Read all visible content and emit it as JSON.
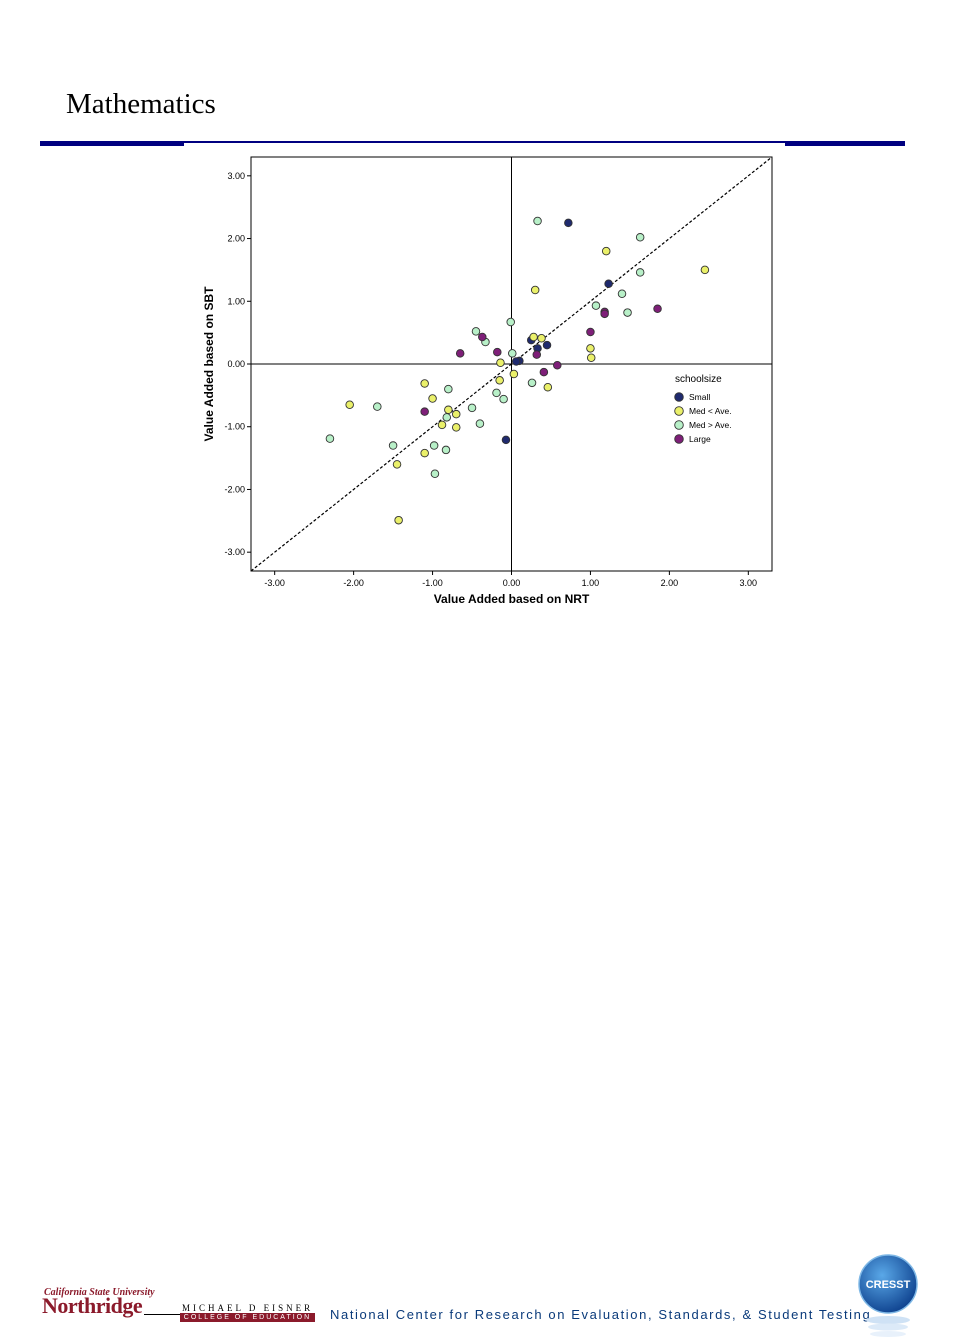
{
  "slide": {
    "title": "Mathematics"
  },
  "chart_data": {
    "type": "scatter",
    "xlabel": "Value Added based on NRT",
    "ylabel": "Value Added based on SBT",
    "xlim": [
      -3.3,
      3.3
    ],
    "ylim": [
      -3.3,
      3.3
    ],
    "xticks": [
      "-3.00",
      "-2.00",
      "-1.00",
      "0.00",
      "1.00",
      "2.00",
      "3.00"
    ],
    "yticks": [
      "3.00",
      "2.00",
      "1.00",
      "0.00",
      "-1.00",
      "-2.00",
      "-3.00"
    ],
    "reference_lines": [
      "x=0",
      "y=0",
      "y=x dashed"
    ],
    "legend": {
      "title": "schoolsize",
      "placement": "right"
    },
    "series": [
      {
        "name": "Small",
        "color": "#1f2a6e",
        "points": [
          [
            0.72,
            2.25
          ],
          [
            1.23,
            1.28
          ],
          [
            0.45,
            0.3
          ],
          [
            0.33,
            0.25
          ],
          [
            0.25,
            0.38
          ],
          [
            0.1,
            0.05
          ],
          [
            0.06,
            0.04
          ],
          [
            -0.07,
            -1.21
          ]
        ]
      },
      {
        "name": "Med < Ave.",
        "color": "#eaf06a",
        "points": [
          [
            1.2,
            1.8
          ],
          [
            2.45,
            1.5
          ],
          [
            0.3,
            1.18
          ],
          [
            0.28,
            0.43
          ],
          [
            0.38,
            0.41
          ],
          [
            1.0,
            0.25
          ],
          [
            1.01,
            0.1
          ],
          [
            0.03,
            -0.16
          ],
          [
            -0.15,
            -0.26
          ],
          [
            0.46,
            -0.37
          ],
          [
            -1.1,
            -0.31
          ],
          [
            -1.0,
            -0.55
          ],
          [
            -0.8,
            -0.73
          ],
          [
            -0.7,
            -0.8
          ],
          [
            -0.88,
            -0.97
          ],
          [
            -0.7,
            -1.01
          ],
          [
            -1.1,
            -1.42
          ],
          [
            -1.45,
            -1.6
          ],
          [
            -2.05,
            -0.65
          ],
          [
            -1.43,
            -2.49
          ],
          [
            -0.14,
            0.02
          ]
        ]
      },
      {
        "name": "Med > Ave.",
        "color": "#b8f0c8",
        "points": [
          [
            0.33,
            2.28
          ],
          [
            1.63,
            2.02
          ],
          [
            1.63,
            1.46
          ],
          [
            1.4,
            1.12
          ],
          [
            1.07,
            0.93
          ],
          [
            1.47,
            0.82
          ],
          [
            -0.01,
            0.67
          ],
          [
            -0.45,
            0.52
          ],
          [
            -0.33,
            0.35
          ],
          [
            0.01,
            0.17
          ],
          [
            0.26,
            -0.3
          ],
          [
            -0.19,
            -0.46
          ],
          [
            -0.1,
            -0.56
          ],
          [
            -0.5,
            -0.7
          ],
          [
            -0.8,
            -0.4
          ],
          [
            -0.82,
            -0.85
          ],
          [
            -0.4,
            -0.95
          ],
          [
            -0.83,
            -1.37
          ],
          [
            -0.98,
            -1.3
          ],
          [
            -0.97,
            -1.75
          ],
          [
            -1.5,
            -1.3
          ],
          [
            -1.7,
            -0.68
          ],
          [
            -2.3,
            -1.19
          ]
        ]
      },
      {
        "name": "Large",
        "color": "#7e1f78",
        "points": [
          [
            1.85,
            0.88
          ],
          [
            1.18,
            0.83
          ],
          [
            1.18,
            0.8
          ],
          [
            1.0,
            0.51
          ],
          [
            -0.37,
            0.43
          ],
          [
            -0.65,
            0.17
          ],
          [
            -0.18,
            0.19
          ],
          [
            0.32,
            0.15
          ],
          [
            0.58,
            -0.02
          ],
          [
            0.41,
            -0.13
          ],
          [
            -1.1,
            -0.76
          ]
        ]
      }
    ]
  },
  "footer": {
    "university_small": "California State University",
    "university_big": "Northridge",
    "college_top": "MICHAEL D EISNER",
    "college_bottom": "COLLEGE OF EDUCATION",
    "center_name": "National Center for Research on Evaluation, Standards, & Student Testing",
    "logo_text": "CRESST"
  }
}
